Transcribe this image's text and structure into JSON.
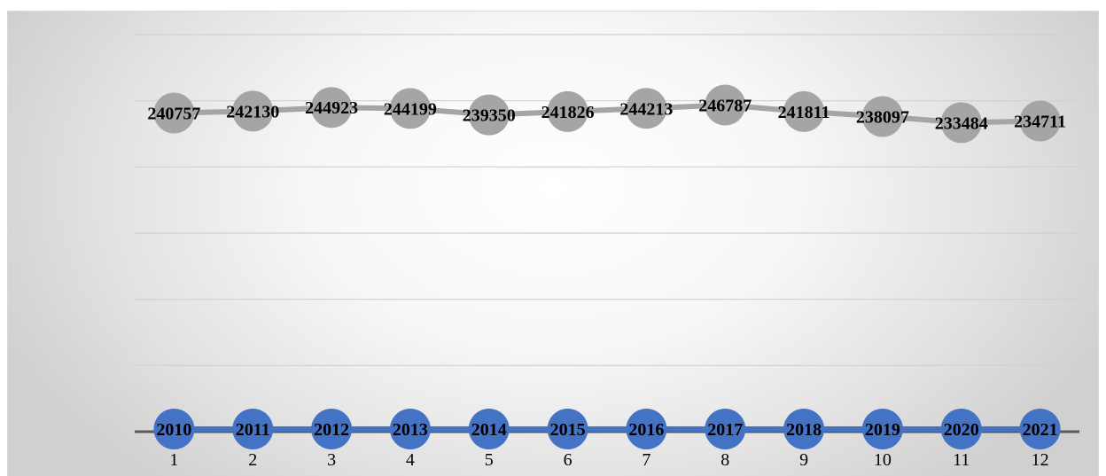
{
  "chart_data": {
    "type": "line",
    "title": "",
    "xlabel": "",
    "ylabel": "",
    "categories": [
      "1",
      "2",
      "3",
      "4",
      "5",
      "6",
      "7",
      "8",
      "9",
      "10",
      "11",
      "12"
    ],
    "series": [
      {
        "values": [
          2010,
          2011,
          2012,
          2013,
          2014,
          2015,
          2016,
          2017,
          2018,
          2019,
          2020,
          2021
        ],
        "color": "#4472c4",
        "data_labels": [
          "2010",
          "2011",
          "2012",
          "2013",
          "2014",
          "2015",
          "2016",
          "2017",
          "2018",
          "2019",
          "2020",
          "2021"
        ]
      },
      {
        "values": [
          240757,
          242130,
          244923,
          244199,
          239350,
          241826,
          244213,
          246787,
          241811,
          238097,
          233484,
          234711
        ],
        "color": "#a5a5a5",
        "data_labels": [
          "240757",
          "242130",
          "244923",
          "244199",
          "239350",
          "241826",
          "244213",
          "246787",
          "241811",
          "238097",
          "233484",
          "234711"
        ]
      }
    ],
    "ylim": [
      0,
      300000
    ],
    "grid": true,
    "y_tick_labels_shown": false
  }
}
